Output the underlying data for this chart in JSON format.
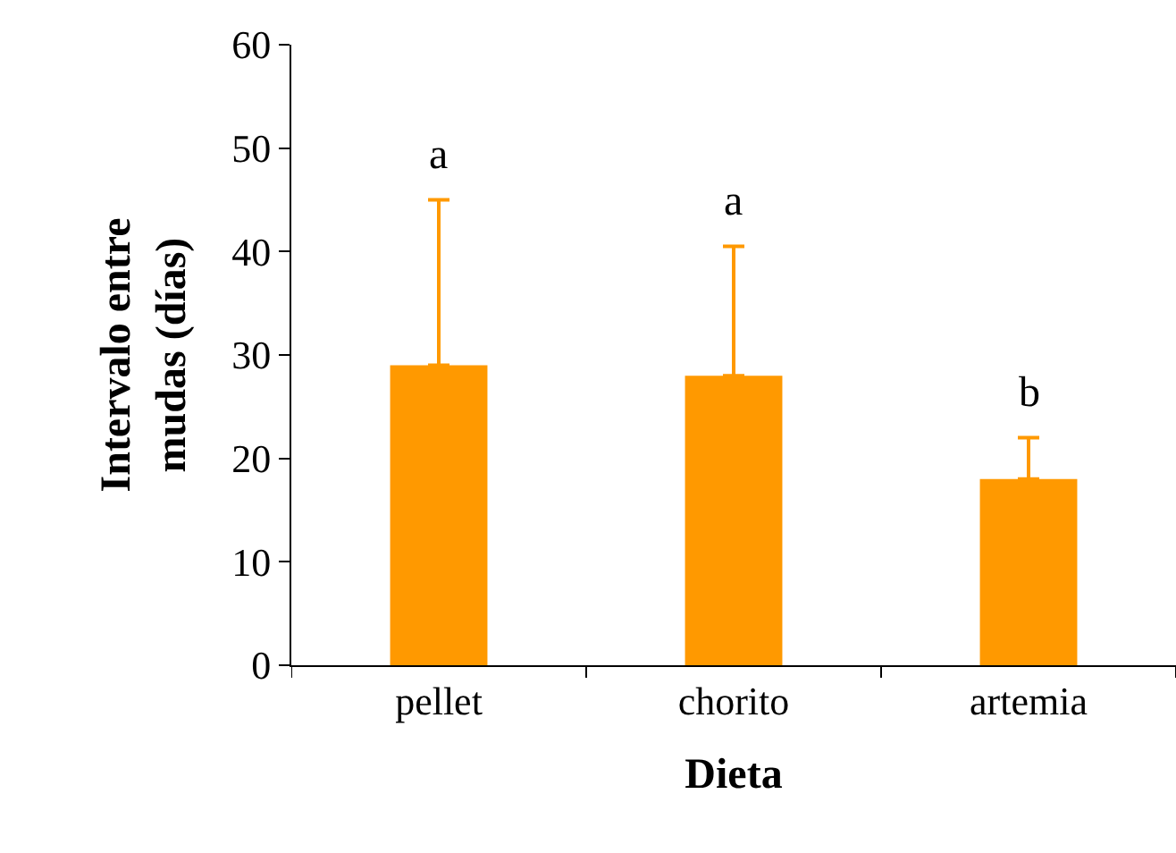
{
  "chart_data": {
    "type": "bar",
    "xlabel": "Dieta",
    "ylabel": "Intervalo entre\nmudas (días)",
    "categories": [
      "pellet",
      "chorito",
      "artemia"
    ],
    "values": [
      29,
      28,
      18
    ],
    "color": "#ff9900",
    "errors": [
      [
        29,
        45
      ],
      [
        28,
        40.5
      ],
      [
        18,
        22
      ]
    ],
    "ylim": [
      0,
      60
    ],
    "yticks": [
      0,
      10,
      20,
      30,
      40,
      50,
      60
    ],
    "grid": false,
    "legend": false,
    "annotations": [
      "a",
      "a",
      "b"
    ]
  }
}
